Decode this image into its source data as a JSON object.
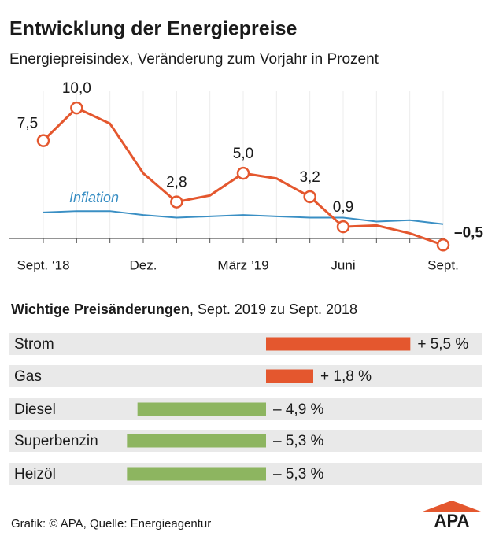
{
  "title": "Entwicklung der Energiepreise",
  "subtitle": "Energiepreisindex, Veränderung zum Vorjahr in Prozent",
  "chart_data": [
    {
      "type": "line",
      "categories": [
        "Sept. ‘18",
        null,
        null,
        "Dez.",
        null,
        null,
        "März ’19",
        null,
        null,
        "Juni",
        null,
        null,
        "Sept."
      ],
      "series": [
        {
          "color": "#e4572e",
          "values": [
            7.5,
            10.0,
            8.8,
            5.0,
            2.8,
            3.3,
            5.0,
            4.6,
            3.2,
            0.9,
            1.0,
            0.4,
            -0.5
          ],
          "value_labels": [
            "7,5",
            "10,0",
            null,
            null,
            "2,8",
            null,
            "5,0",
            null,
            "3,2",
            "0,9",
            null,
            null,
            "–0,5"
          ]
        },
        {
          "name": "Inflation",
          "color": "#3a8fc4",
          "values": [
            2.0,
            2.1,
            2.1,
            1.8,
            1.6,
            1.7,
            1.8,
            1.7,
            1.6,
            1.6,
            1.3,
            1.4,
            1.1
          ]
        }
      ],
      "ylim": [
        -1,
        12
      ],
      "yticks": [
        0
      ]
    },
    {
      "type": "hbar",
      "title": "Wichtige Preisänderungen",
      "subtitle": ", Sept. 2019 zu Sept. 2018",
      "categories": [
        "Strom",
        "Gas",
        "Diesel",
        "Superbenzin",
        "Heizöl"
      ],
      "values": [
        5.5,
        1.8,
        -4.9,
        -5.3,
        -5.3
      ],
      "value_labels": [
        "+ 5,5 %",
        "+ 1,8 %",
        "– 4,9 %",
        "– 5,3 %",
        "– 5,3 %"
      ],
      "positive_color": "#e4572e",
      "negative_color": "#8db560",
      "xlim": [
        -6,
        6
      ]
    }
  ],
  "footer": "Grafik: © APA, Quelle: Energieagentur",
  "logo": "APA"
}
